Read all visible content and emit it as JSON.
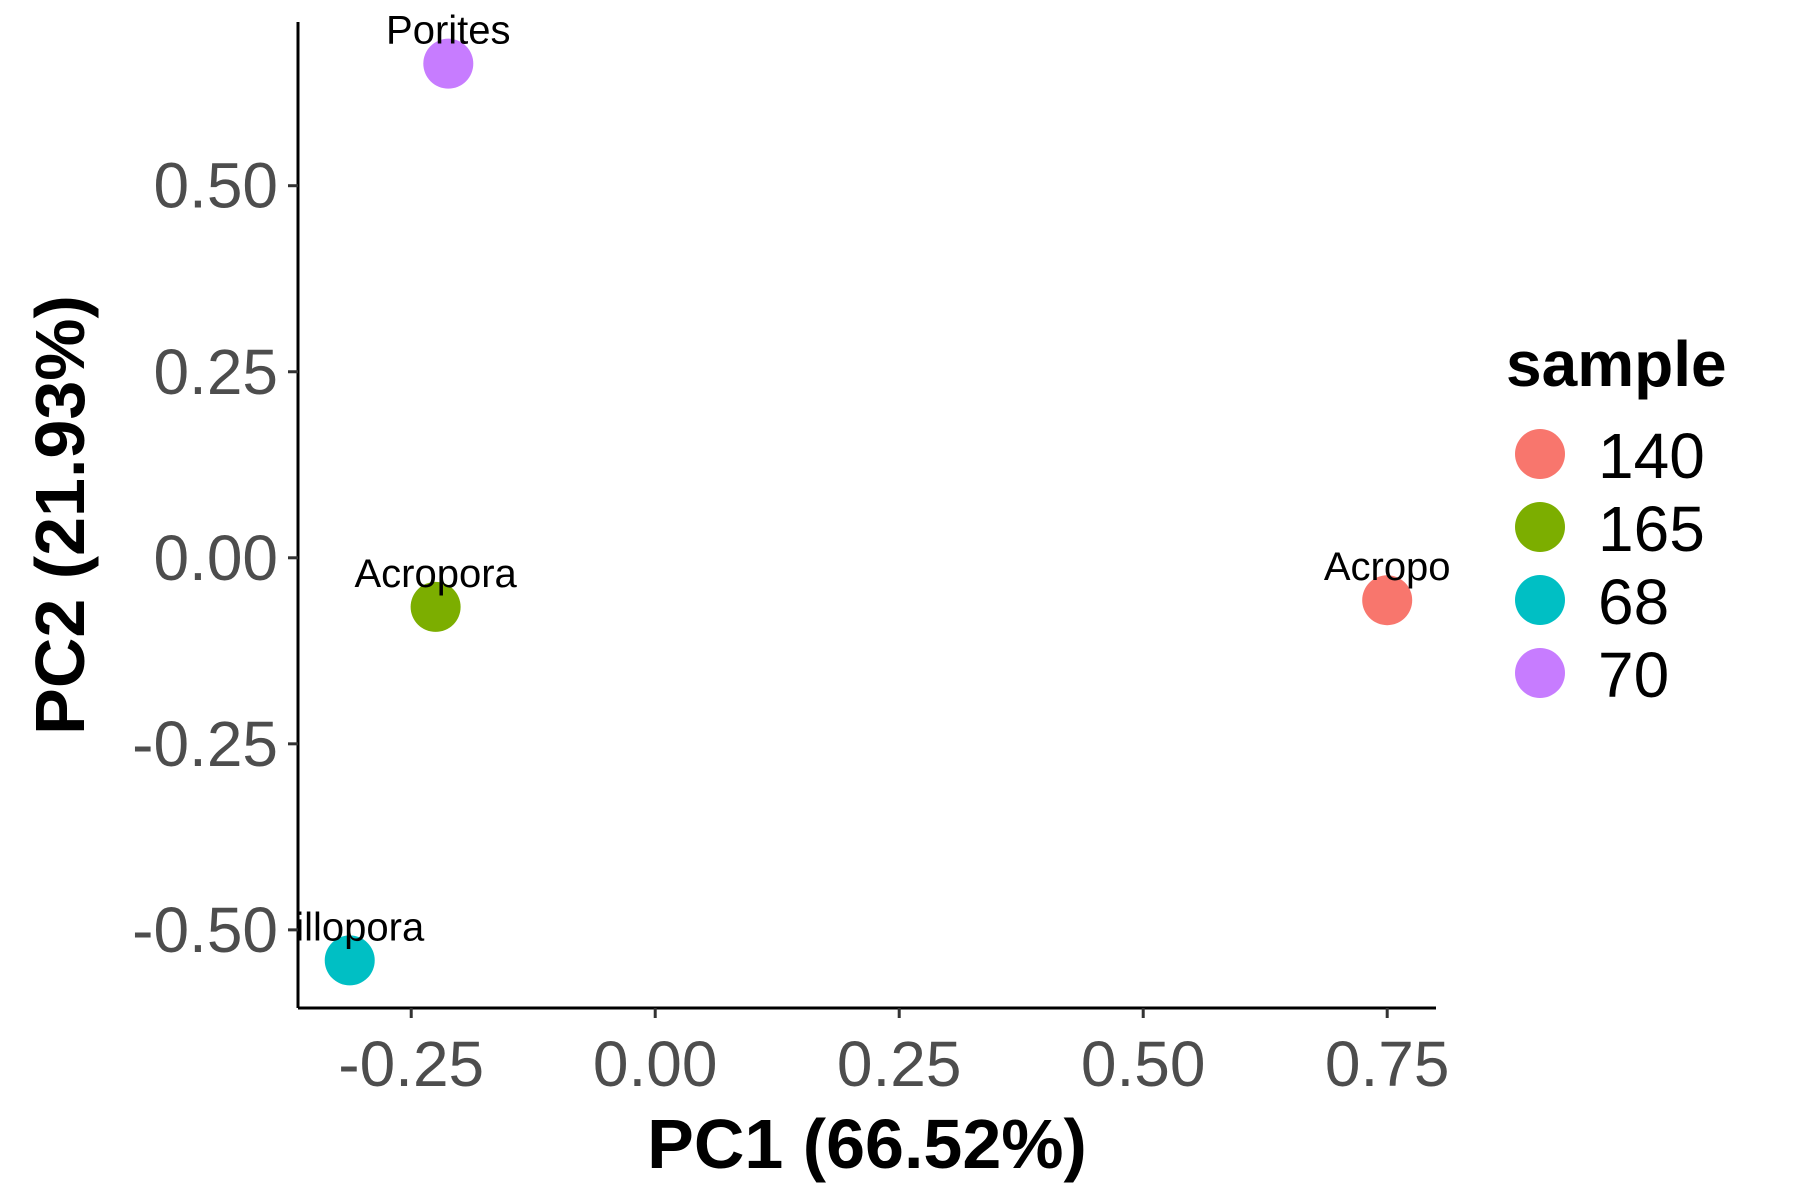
{
  "chart_data": {
    "type": "scatter",
    "title": "",
    "xlabel": "PC1 (66.52%)",
    "ylabel": "PC2 (21.93%)",
    "xlim": [
      -0.366,
      0.8
    ],
    "ylim": [
      -0.605,
      0.72
    ],
    "xticks": [
      -0.25,
      0.0,
      0.25,
      0.5,
      0.75
    ],
    "xtick_labels": [
      "-0.25",
      "0.00",
      "0.25",
      "0.50",
      "0.75"
    ],
    "yticks": [
      -0.5,
      -0.25,
      0.0,
      0.25,
      0.5
    ],
    "ytick_labels": [
      "-0.50",
      "-0.25",
      "0.00",
      "0.25",
      "0.50"
    ],
    "grid": false,
    "legend": {
      "title": "sample",
      "position": "right",
      "entries": [
        {
          "label": "140",
          "color": "#F8766D"
        },
        {
          "label": "165",
          "color": "#7CAE00"
        },
        {
          "label": "68",
          "color": "#00BFC4"
        },
        {
          "label": "70",
          "color": "#C77CFF"
        }
      ]
    },
    "points": [
      {
        "sample": "140",
        "x": 0.75,
        "y": -0.057,
        "label": "Acropo",
        "color": "#F8766D"
      },
      {
        "sample": "165",
        "x": -0.225,
        "y": -0.066,
        "label": "Acropora",
        "color": "#7CAE00"
      },
      {
        "sample": "68",
        "x": -0.313,
        "y": -0.541,
        "label": "cillopora",
        "color": "#00BFC4"
      },
      {
        "sample": "70",
        "x": -0.212,
        "y": 0.664,
        "label": "Porites",
        "color": "#C77CFF"
      }
    ]
  }
}
